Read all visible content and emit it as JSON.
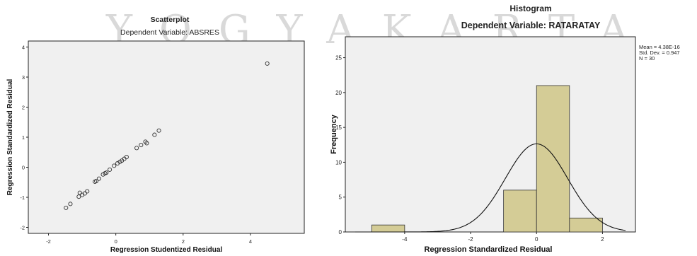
{
  "watermark": "YOGYAKARTA",
  "colors": {
    "plot_bg": "#f0f0f0",
    "bar_fill": "#d4cc96",
    "bar_stroke": "#333333",
    "curve": "#111111",
    "marker": "#333333"
  },
  "chart_data": [
    {
      "type": "scatter",
      "title": "Scatterplot",
      "subtitle": "Dependent Variable: ABSRES",
      "xlabel": "Regression Studentized Residual",
      "ylabel": "Regression Standardized Residual",
      "xlim": [
        -2.6,
        5.6
      ],
      "ylim": [
        -2.2,
        4.2
      ],
      "xticks": [
        -2,
        0,
        2,
        4
      ],
      "yticks": [
        -2,
        -1,
        0,
        1,
        2,
        3,
        4
      ],
      "grid": false,
      "points": [
        [
          -1.48,
          -1.35
        ],
        [
          -1.35,
          -1.22
        ],
        [
          -1.1,
          -0.98
        ],
        [
          -1.07,
          -0.85
        ],
        [
          -1.0,
          -0.92
        ],
        [
          -0.92,
          -0.87
        ],
        [
          -0.85,
          -0.8
        ],
        [
          -0.62,
          -0.48
        ],
        [
          -0.58,
          -0.46
        ],
        [
          -0.5,
          -0.38
        ],
        [
          -0.38,
          -0.24
        ],
        [
          -0.32,
          -0.2
        ],
        [
          -0.28,
          -0.18
        ],
        [
          -0.18,
          -0.08
        ],
        [
          -0.05,
          0.05
        ],
        [
          0.05,
          0.13
        ],
        [
          0.12,
          0.18
        ],
        [
          0.18,
          0.22
        ],
        [
          0.25,
          0.28
        ],
        [
          0.32,
          0.34
        ],
        [
          0.62,
          0.64
        ],
        [
          0.75,
          0.74
        ],
        [
          0.88,
          0.85
        ],
        [
          0.92,
          0.8
        ],
        [
          1.15,
          1.08
        ],
        [
          1.28,
          1.22
        ],
        [
          4.5,
          3.45
        ]
      ]
    },
    {
      "type": "bar",
      "subtype": "histogram",
      "title": "Histogram",
      "subtitle": "Dependent Variable: RATARATAY",
      "xlabel": "Regression Standardized Residual",
      "ylabel": "Frequency",
      "xlim": [
        -5.8,
        3.0
      ],
      "ylim": [
        0,
        28
      ],
      "xticks": [
        -4,
        -2,
        0,
        2
      ],
      "yticks": [
        0,
        5,
        10,
        15,
        20,
        25
      ],
      "grid": false,
      "bins": [
        {
          "x0": -5,
          "x1": -4,
          "count": 1
        },
        {
          "x0": -1,
          "x1": 0,
          "count": 6
        },
        {
          "x0": 0,
          "x1": 1,
          "count": 21
        },
        {
          "x0": 1,
          "x1": 2,
          "count": 2
        }
      ],
      "normal_curve": {
        "mean": 0.0,
        "sd": 0.947,
        "n": 30,
        "bin_width": 1
      },
      "stats": [
        "Mean = 4.38E-16",
        "Std. Dev. = 0.947",
        "N = 30"
      ]
    }
  ]
}
